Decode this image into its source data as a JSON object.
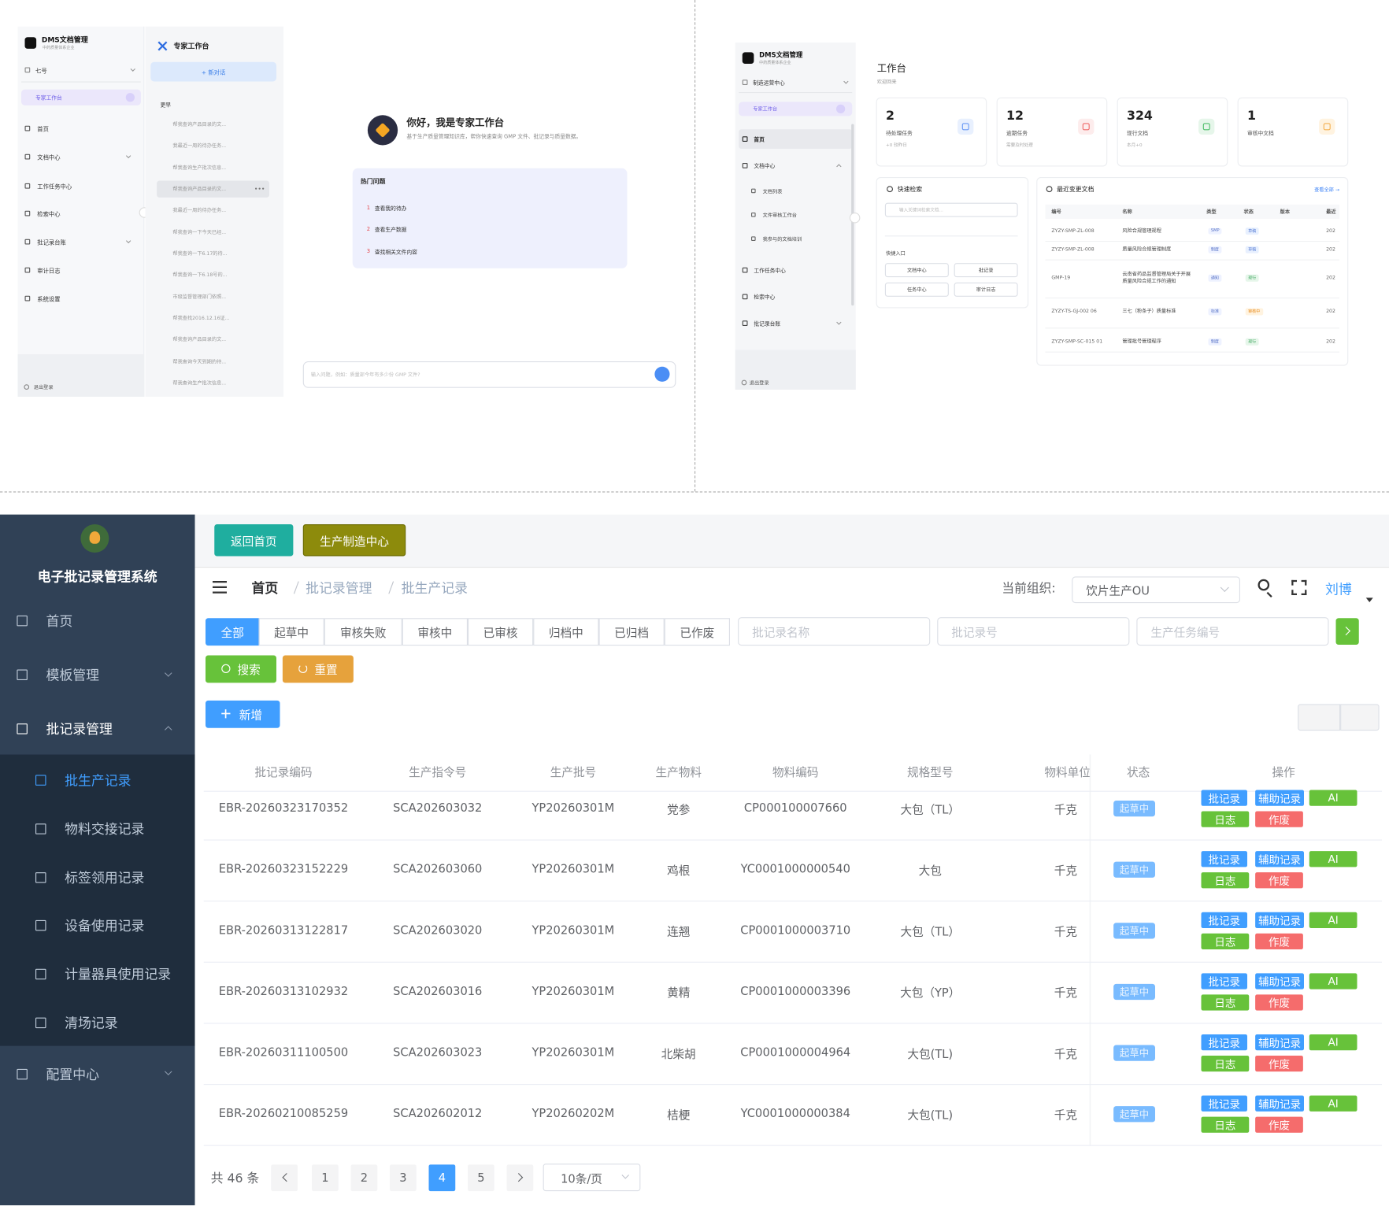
{
  "dms_chat": {
    "sidebar": {
      "title": "DMS文档管理",
      "subtitle": "中药质量体系企业",
      "user": "七号",
      "active": "专家工作台",
      "menu": [
        "首页",
        "文档中心",
        "工作任务中心",
        "检索中心",
        "批记录台账",
        "审计日志",
        "系统设置"
      ],
      "logout": "退出登录"
    },
    "history": {
      "title": "专家工作台",
      "new_chat": "+ 新对话",
      "group": "更早",
      "items": [
        "帮我查询产品目录的文...",
        "我最近一周的待办任务...",
        "帮我查询生产批次信息...",
        "帮我查询产品目录的文...",
        "我最近一周的待办任务...",
        "帮我查询一下今天已经...",
        "帮我查询一下6.17的待...",
        "帮我查询一下6.18号的...",
        "市级监督管理部门依照...",
        "帮我查找2016.12.16证...",
        "帮我查询产品目录的文...",
        "帮我查询今天到期的待...",
        "帮我查询生产批次信息..."
      ]
    },
    "chat": {
      "greeting": "你好，我是专家工作台",
      "intro": "基于生产质量管理知识库，帮你快速查询 GMP 文件、批记录与质量数据。",
      "hot_title": "热门问题",
      "hot": [
        {
          "num": "1",
          "text": "查看我的待办"
        },
        {
          "num": "2",
          "text": "查看生产数据"
        },
        {
          "num": "3",
          "text": "查找相关文件内容"
        }
      ],
      "placeholder": "输入问题，例如：质量部今年有多少份 GMP 文件?"
    }
  },
  "dms_home": {
    "sidebar": {
      "title": "DMS文档管理",
      "subtitle": "中药质量体系企业",
      "org": "制造运营中心",
      "active": "专家工作台",
      "home": "首页",
      "docs": "文档中心",
      "docs_children": [
        "文档列表",
        "文件审核工作台",
        "我参与的文档培训"
      ],
      "menu": [
        "工作任务中心",
        "检索中心",
        "批记录台账"
      ],
      "logout": "退出登录"
    },
    "title": "工作台",
    "subtitle": "欢迎回来",
    "stats": [
      {
        "value": "2",
        "label": "待处理任务",
        "note": "+0 较昨日"
      },
      {
        "value": "12",
        "label": "逾期任务",
        "note": "需要及时处理"
      },
      {
        "value": "324",
        "label": "现行文档",
        "note": "本月+0"
      },
      {
        "value": "1",
        "label": "审核中文档"
      }
    ],
    "search": {
      "title": "快速检索",
      "placeholder": "输入关键词检索文档...",
      "shortcut_title": "快捷入口",
      "shortcuts": [
        "文档中心",
        "批记录",
        "任务中心",
        "审计日志"
      ]
    },
    "recent": {
      "title": "最近变更文档",
      "more": "查看全部 →",
      "headers": [
        "编号",
        "名称",
        "类型",
        "状态",
        "版本",
        "最近"
      ],
      "rows": [
        [
          "ZYZY-SMP-ZL-008",
          "风险合规管理规程",
          "SMP",
          "草稿",
          "202"
        ],
        [
          "ZYZY-SMP-ZL-008",
          "质量风险合规管理制度",
          "制度",
          "草稿",
          "202"
        ],
        [
          "GMP-19",
          "云南省药品监督管理局关于开展质量风险合规工作的通知",
          "通知",
          "现行",
          "202"
        ],
        [
          "ZYZY-TS-GJ-002 06",
          "三七（粉条子）质量标准",
          "标准",
          "审核中",
          "202"
        ],
        [
          "ZYZY-SMP-SC-015 01",
          "管理批号管理程序",
          "制度",
          "现行",
          "202"
        ]
      ]
    }
  },
  "ebr": {
    "title": "电子批记录管理系统",
    "menu": [
      "首页",
      "模板管理",
      "批记录管理"
    ],
    "submenu": [
      "批生产记录",
      "物料交接记录",
      "标签领用记录",
      "设备使用记录",
      "计量器具使用记录",
      "清场记录"
    ],
    "menu_bottom": "配置中心",
    "top_buttons": [
      "返回首页",
      "生产制造中心"
    ],
    "breadcrumb": [
      "首页",
      "批记录管理",
      "批生产记录"
    ],
    "org_label": "当前组织:",
    "org": "饮片生产OU",
    "user": "刘博",
    "tabs": [
      "全部",
      "起草中",
      "审核失败",
      "审核中",
      "已审核",
      "归档中",
      "已归档",
      "已作废"
    ],
    "filters": [
      "批记录名称",
      "批记录号",
      "生产任务编号"
    ],
    "search": "搜索",
    "reset": "重置",
    "add": "新增",
    "headers": [
      "批记录编码",
      "生产指令号",
      "生产批号",
      "生产物料",
      "物料编码",
      "规格型号",
      "物料单位",
      "状态",
      "操作"
    ],
    "rows": [
      [
        "EBR-20260323170352",
        "SCA202603032",
        "YP20260301M",
        "党参",
        "CP000100007660",
        "大包（TL）",
        "千克",
        "起草中"
      ],
      [
        "EBR-20260323152229",
        "SCA202603060",
        "YP20260301M",
        "鸡根",
        "YC0001000000540",
        "大包",
        "千克",
        "起草中"
      ],
      [
        "EBR-20260313122817",
        "SCA202603020",
        "YP20260301M",
        "连翘",
        "CP0001000003710",
        "大包（TL）",
        "千克",
        "起草中"
      ],
      [
        "EBR-20260313102932",
        "SCA202603016",
        "YP20260301M",
        "黄精",
        "CP0001000003396",
        "大包（YP）",
        "千克",
        "起草中"
      ],
      [
        "EBR-20260311100500",
        "SCA202603023",
        "YP20260301M",
        "北柴胡",
        "CP0001000004964",
        "大包(TL)",
        "千克",
        "起草中"
      ],
      [
        "EBR-20260210085259",
        "SCA202602012",
        "YP20260202M",
        "桔梗",
        "YC0001000000384",
        "大包(TL)",
        "千克",
        "起草中"
      ]
    ],
    "actions": [
      "批记录",
      "辅助记录",
      "AI",
      "日志",
      "作废"
    ],
    "total": "共 46 条",
    "pages": [
      "1",
      "2",
      "3",
      "4",
      "5"
    ],
    "page_size": "10条/页"
  }
}
